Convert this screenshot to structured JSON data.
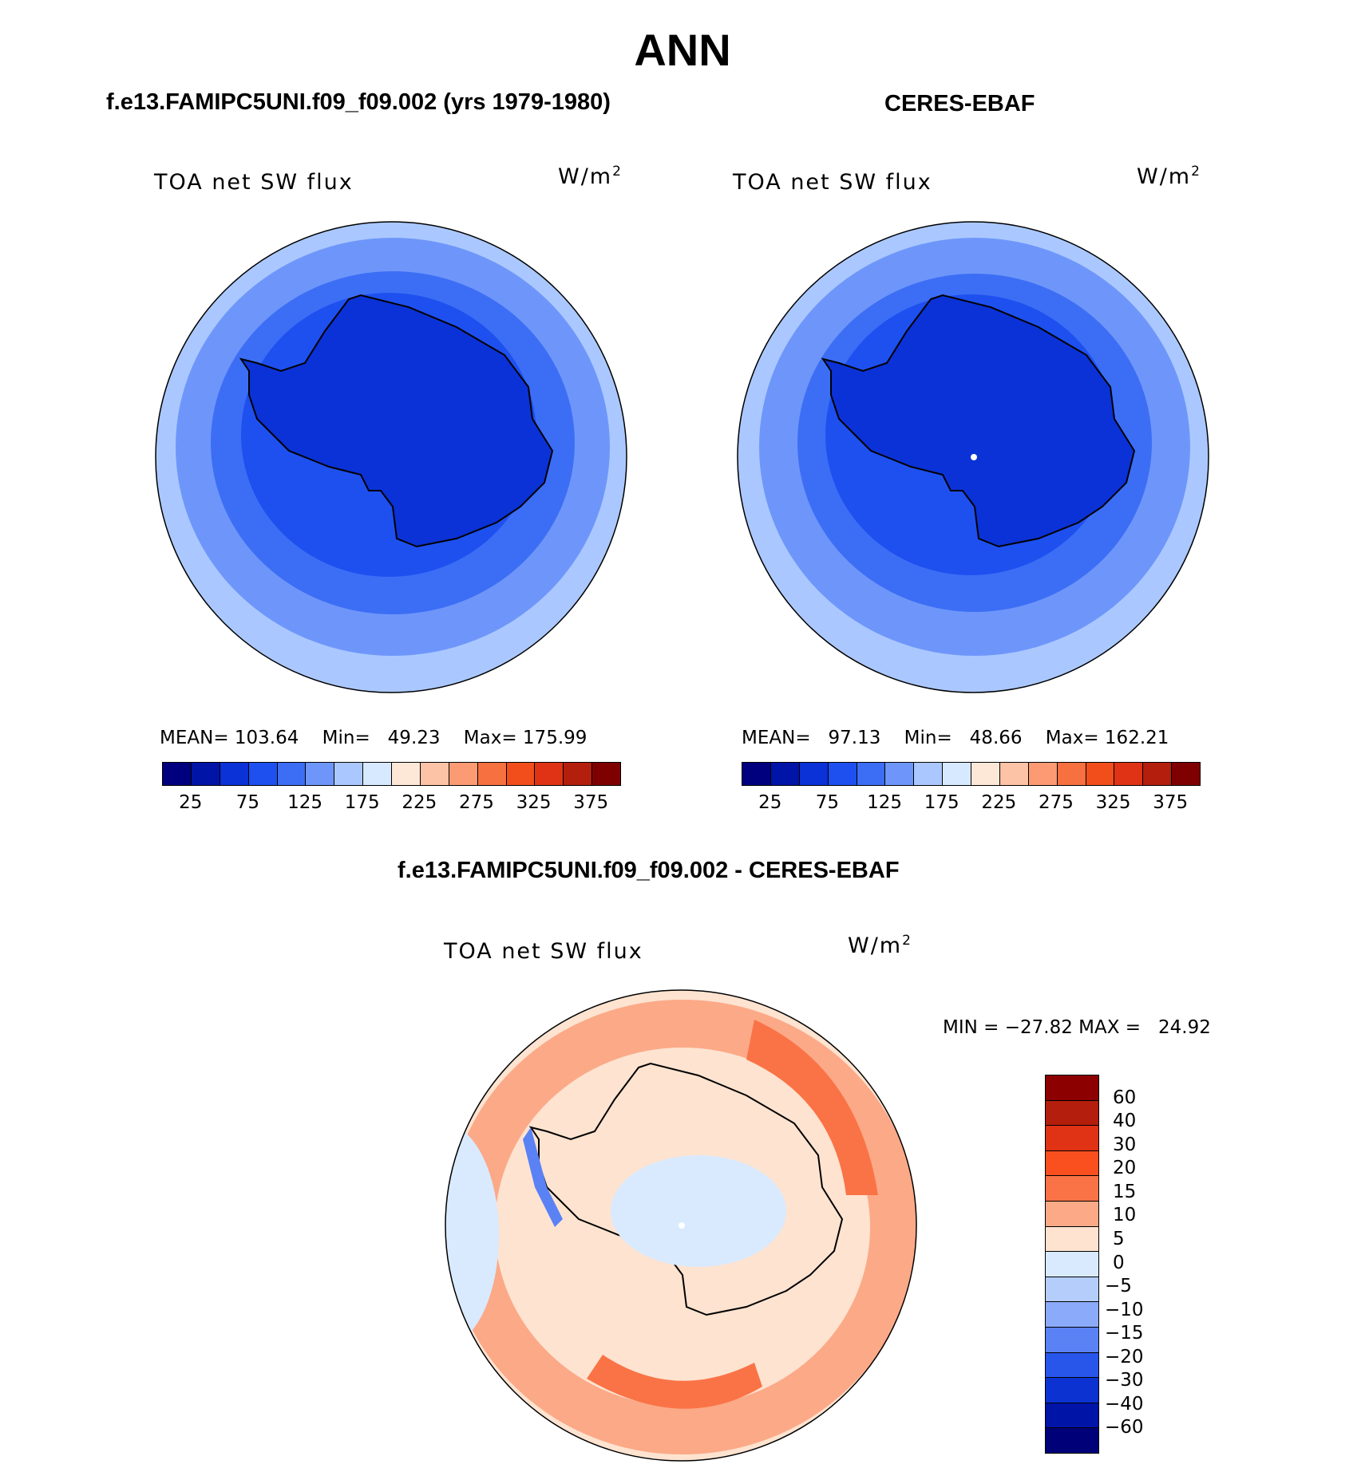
{
  "title": "ANN",
  "panels": [
    {
      "title": "f.e13.FAMIPC5UNI.f09_f09.002 (yrs 1979-1980)",
      "variable": "TOA net SW flux",
      "units": "W/m",
      "units_sup": "2",
      "stats": {
        "mean_label": "MEAN=",
        "mean": "103.64",
        "min_label": "Min=",
        "min": "49.23",
        "max_label": "Max=",
        "max": "175.99"
      }
    },
    {
      "title": "CERES-EBAF",
      "variable": "TOA net SW flux",
      "units": "W/m",
      "units_sup": "2",
      "stats": {
        "mean_label": "MEAN=",
        "mean": "97.13",
        "min_label": "Min=",
        "min": "48.66",
        "max_label": "Max=",
        "max": "162.21"
      }
    }
  ],
  "abs_colorbar": {
    "colors": [
      "#00007f",
      "#0014a8",
      "#0b32d6",
      "#1e50f0",
      "#3c6ef5",
      "#6e96fa",
      "#aac8ff",
      "#d7e9ff",
      "#fde8d8",
      "#fcc3a6",
      "#fb9a73",
      "#f7703f",
      "#f14e1c",
      "#e03214",
      "#b41e0c",
      "#7f0000"
    ],
    "ticks": [
      "25",
      "75",
      "125",
      "175",
      "225",
      "275",
      "325",
      "375"
    ]
  },
  "diff_panel": {
    "title": "f.e13.FAMIPC5UNI.f09_f09.002 - CERES-EBAF",
    "variable": "TOA net SW flux",
    "units": "W/m",
    "units_sup": "2",
    "stats": "MIN = −27.82 MAX =   24.92"
  },
  "diff_colorbar": {
    "colors": [
      "#8c0000",
      "#b41e0c",
      "#e03214",
      "#fa4f1e",
      "#fa7346",
      "#fca987",
      "#fde3d0",
      "#d9eaff",
      "#b4cdfa",
      "#8caafa",
      "#5a82f5",
      "#2856eb",
      "#0c32d2",
      "#0014a8",
      "#000078"
    ],
    "ticks": [
      "60",
      "40",
      "30",
      "20",
      "15",
      "10",
      "5",
      "0",
      "−5",
      "−10",
      "−15",
      "−20",
      "−30",
      "−40",
      "−60"
    ]
  },
  "map_colors": {
    "ocean_outer": "#aac8ff",
    "ocean_mid": "#6e96fa",
    "ocean_inner": "#3c6ef5",
    "ocean_near": "#1e50f0",
    "land": "#0b32d6",
    "diff_base": "#fde3d0",
    "diff_pos1": "#fca987",
    "diff_pos2": "#fa7346",
    "diff_neg1": "#d9eaff",
    "diff_neg2": "#b4cdfa",
    "diff_neg3": "#5a82f5"
  }
}
